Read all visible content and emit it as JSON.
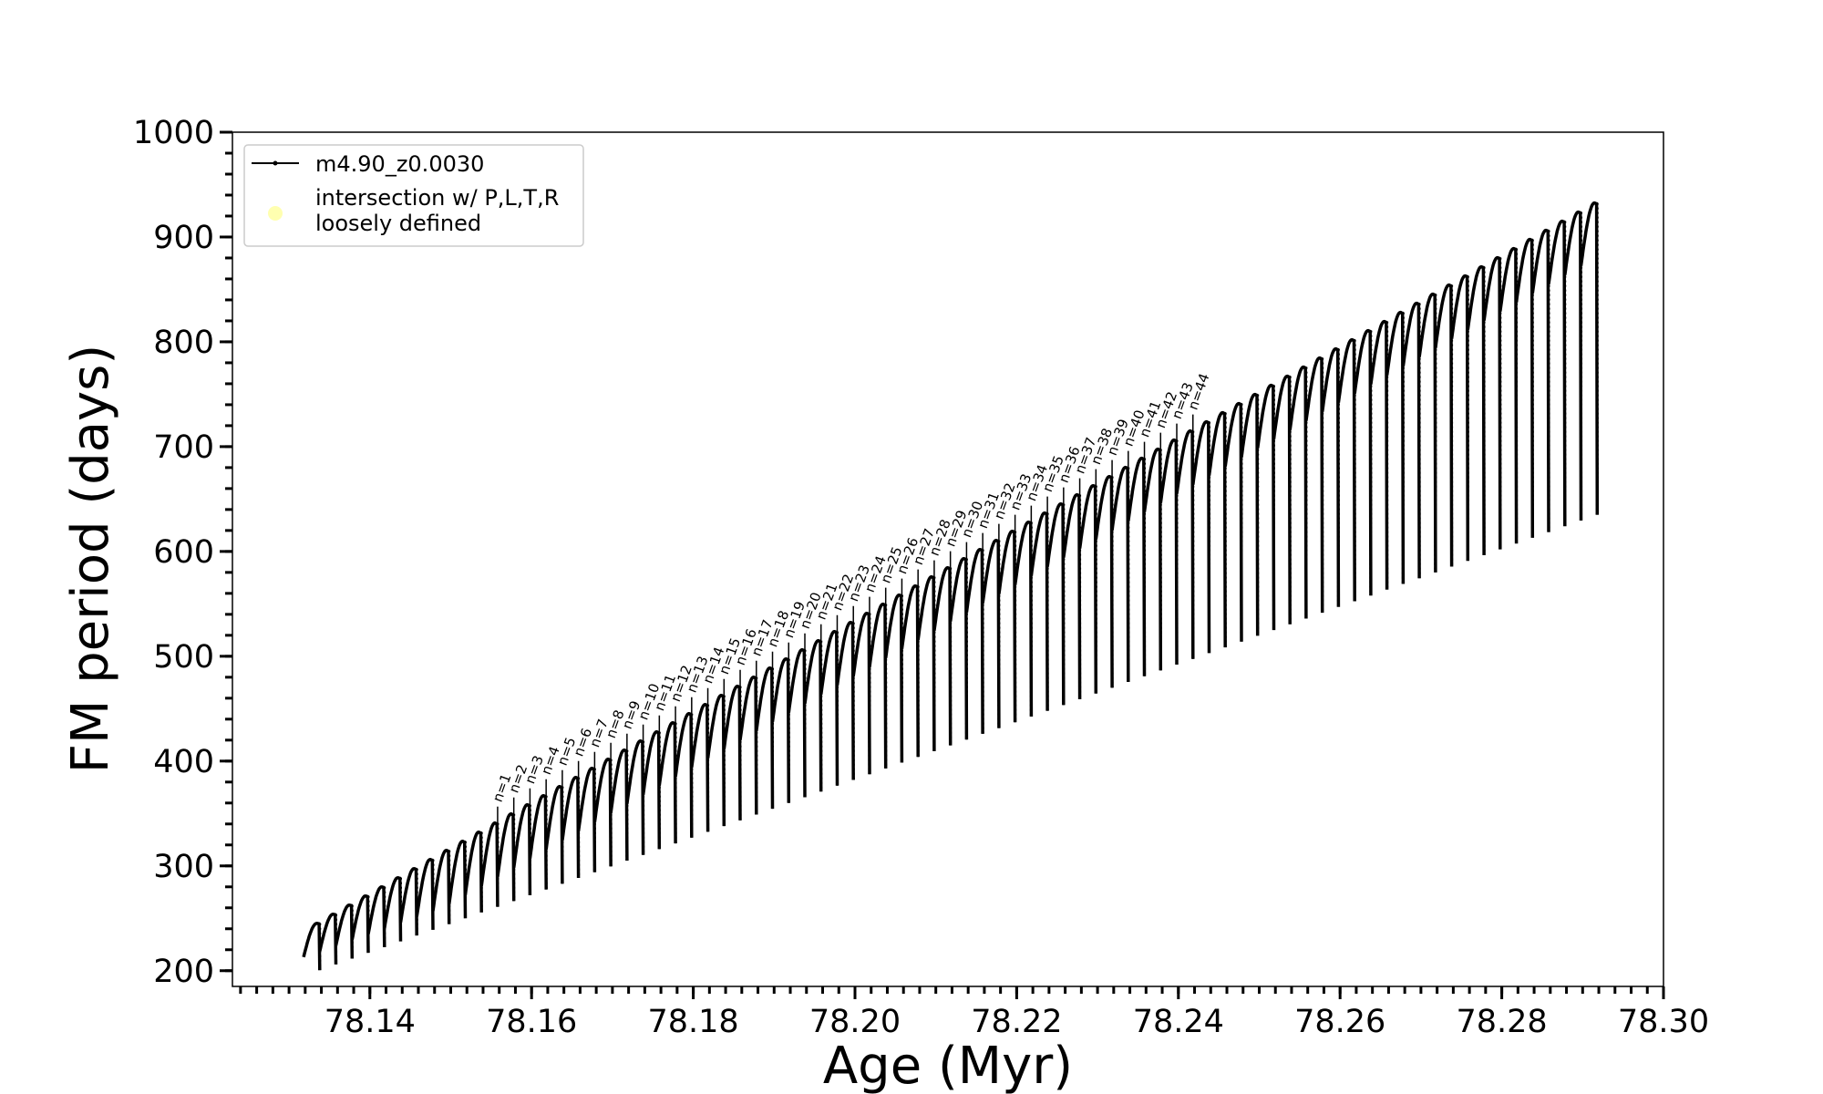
{
  "chart_data": {
    "type": "line",
    "xlabel": "Age (Myr)",
    "ylabel": "FM period (days)",
    "xlim": [
      78.123,
      78.3
    ],
    "ylim": [
      185,
      1000
    ],
    "xticks": [
      "78.14",
      "78.16",
      "78.18",
      "78.20",
      "78.22",
      "78.24",
      "78.26",
      "78.28",
      "78.30"
    ],
    "yticks": [
      "200",
      "300",
      "400",
      "500",
      "600",
      "700",
      "800",
      "900",
      "1000"
    ],
    "x_minor_step": 0.002,
    "y_minor_step": 20,
    "grid": false,
    "legend_position": "top-left",
    "series": [
      {
        "name": "m4.90_z0.0030",
        "color": "#000000",
        "marker": "dot",
        "description_of_shape": "thermal pulse cycles",
        "pulse_start_age": 78.1318,
        "pulse_interval_myr": 0.002,
        "n_pulses": 80,
        "trough_start": 195,
        "trough_slope_per_myr": 2750,
        "peak_start": 240,
        "peak_slope_per_myr": 4350
      },
      {
        "name": "intersection w/ P,L,T,R loosely defined",
        "legend_lines": [
          "intersection w/ P,L,T,R",
          "loosely defined"
        ],
        "color": "#ffffb0",
        "marker": "circle",
        "values": []
      }
    ],
    "annotations": {
      "labels": [
        "n=1",
        "n=2",
        "n=3",
        "n=4",
        "n=5",
        "n=6",
        "n=7",
        "n=8",
        "n=9",
        "n=10",
        "n=11",
        "n=12",
        "n=13",
        "n=14",
        "n=15",
        "n=16",
        "n=17",
        "n=18",
        "n=19",
        "n=20",
        "n=21",
        "n=22",
        "n=23",
        "n=24",
        "n=25",
        "n=26",
        "n=27",
        "n=28",
        "n=29",
        "n=30",
        "n=31",
        "n=32",
        "n=33",
        "n=34",
        "n=35",
        "n=36",
        "n=37",
        "n=38",
        "n=39",
        "n=40",
        "n=41",
        "n=42",
        "n=43",
        "n=44"
      ],
      "first_label_age": 78.1558,
      "label_interval_myr": 0.002
    }
  }
}
